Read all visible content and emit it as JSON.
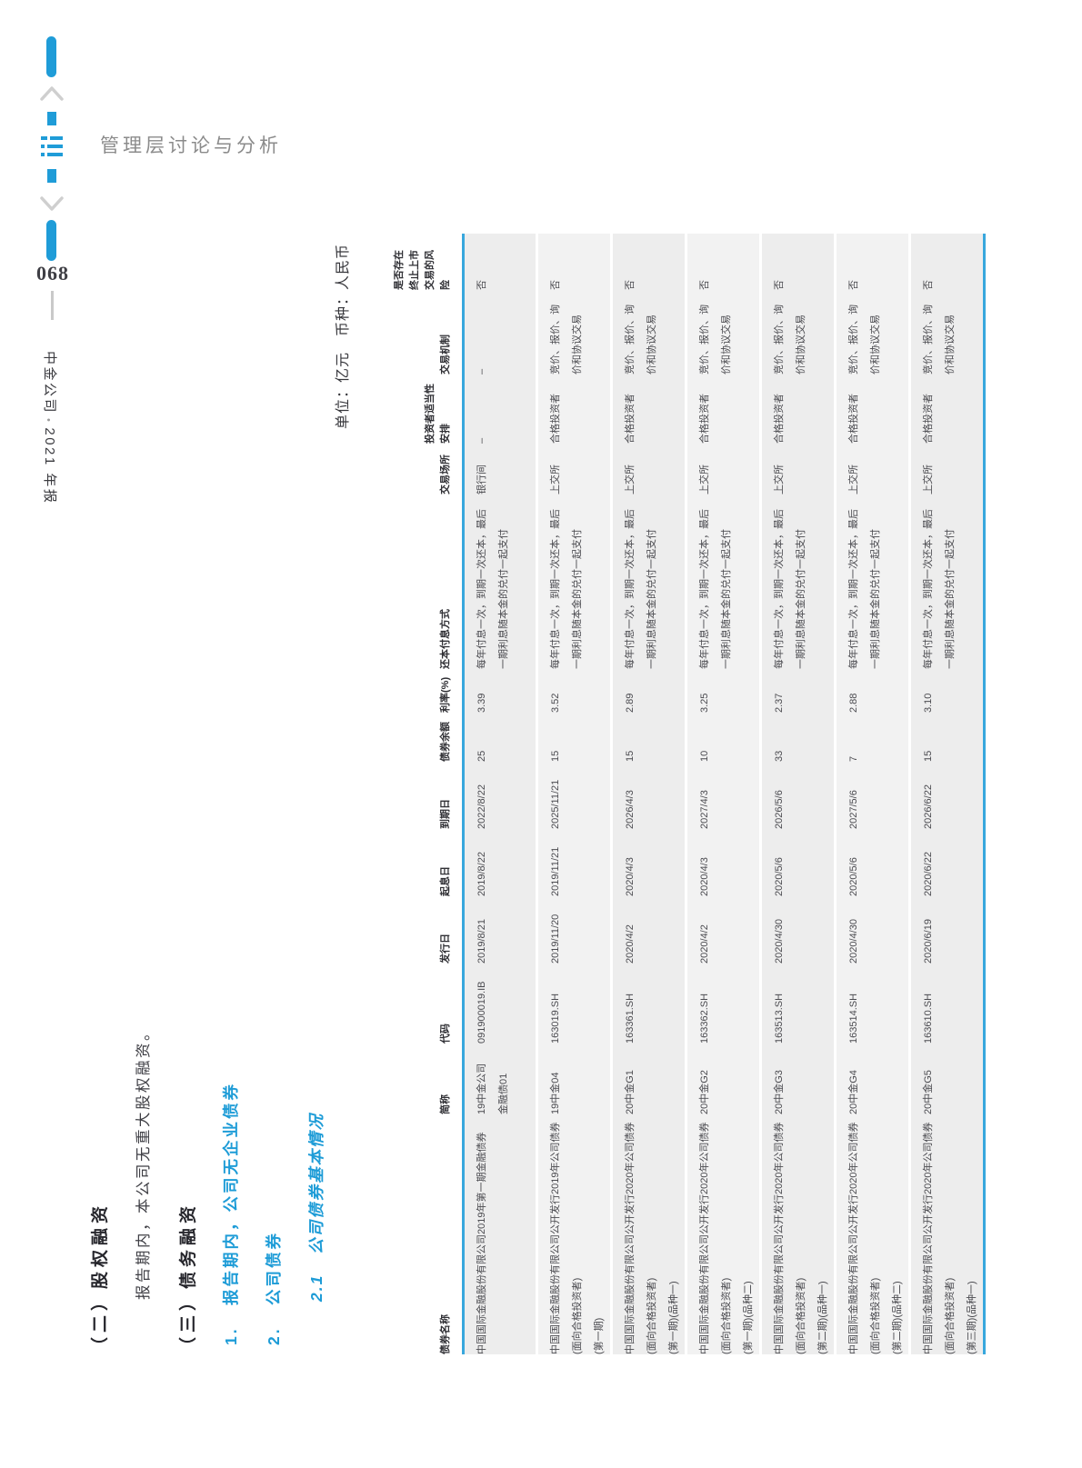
{
  "page": {
    "number": "068",
    "spine_company": "中金公司",
    "spine_sep": "•",
    "spine_year": "2021 年报",
    "header_title": "管理层讨论与分析"
  },
  "sections": {
    "s2_title": "（二）股权融资",
    "s2_body": "报告期内，本公司无重大股权融资。",
    "s3_title": "（三）债务融资",
    "item1_num": "1.",
    "item1_text": "报告期内，公司无企业债券",
    "item2_num": "2.",
    "item2_text": "公司债券",
    "sub_num": "2.1",
    "sub_text": "公司债券基本情况"
  },
  "table": {
    "unit_note": "单位：亿元　币种：人民币",
    "columns": [
      "债券名称",
      "简称",
      "代码",
      "发行日",
      "起息日",
      "到期日",
      "债券余额",
      "利率(%)",
      "还本付息方式",
      "交易场所",
      "投资者适当性安排",
      "交易机制",
      "是否存在终止上市交易的风险"
    ],
    "rows": [
      {
        "name_lines": [
          "中国国际金融股份有限公司2019年第一期金融债券",
          ""
        ],
        "abbr_lines": [
          "19中金公司",
          "金融债01"
        ],
        "code": "091900019.IB",
        "issue_date": "2019/8/21",
        "value_date": "2019/8/22",
        "maturity_date": "2022/8/22",
        "balance": "25",
        "rate": "3.39",
        "repayment": "每年付息一次，到期一次还本，最后一期利息随本金的兑付一起支付",
        "market": "银行间",
        "investor": "–",
        "mechanism": "–",
        "risk": "否"
      },
      {
        "name_lines": [
          "中国国际金融股份有限公司公开发行2019年公司债券(面向合格投资者)",
          "(第一期)"
        ],
        "abbr_lines": [
          "19中金04",
          ""
        ],
        "code": "163019.SH",
        "issue_date": "2019/11/20",
        "value_date": "2019/11/21",
        "maturity_date": "2025/11/21",
        "balance": "15",
        "rate": "3.52",
        "repayment": "每年付息一次，到期一次还本，最后一期利息随本金的兑付一起支付",
        "market": "上交所",
        "investor": "合格投资者",
        "mechanism": "竞价、报价、询价和协议交易",
        "risk": "否"
      },
      {
        "name_lines": [
          "中国国际金融股份有限公司公开发行2020年公司债券(面向合格投资者)",
          "(第一期)(品种一)"
        ],
        "abbr_lines": [
          "20中金G1",
          ""
        ],
        "code": "163361.SH",
        "issue_date": "2020/4/2",
        "value_date": "2020/4/3",
        "maturity_date": "2026/4/3",
        "balance": "15",
        "rate": "2.89",
        "repayment": "每年付息一次，到期一次还本，最后一期利息随本金的兑付一起支付",
        "market": "上交所",
        "investor": "合格投资者",
        "mechanism": "竞价、报价、询价和协议交易",
        "risk": "否"
      },
      {
        "name_lines": [
          "中国国际金融股份有限公司公开发行2020年公司债券(面向合格投资者)",
          "(第一期)(品种二)"
        ],
        "abbr_lines": [
          "20中金G2",
          ""
        ],
        "code": "163362.SH",
        "issue_date": "2020/4/2",
        "value_date": "2020/4/3",
        "maturity_date": "2027/4/3",
        "balance": "10",
        "rate": "3.25",
        "repayment": "每年付息一次，到期一次还本，最后一期利息随本金的兑付一起支付",
        "market": "上交所",
        "investor": "合格投资者",
        "mechanism": "竞价、报价、询价和协议交易",
        "risk": "否"
      },
      {
        "name_lines": [
          "中国国际金融股份有限公司公开发行2020年公司债券(面向合格投资者)",
          "(第二期)(品种一)"
        ],
        "abbr_lines": [
          "20中金G3",
          ""
        ],
        "code": "163513.SH",
        "issue_date": "2020/4/30",
        "value_date": "2020/5/6",
        "maturity_date": "2026/5/6",
        "balance": "33",
        "rate": "2.37",
        "repayment": "每年付息一次，到期一次还本，最后一期利息随本金的兑付一起支付",
        "market": "上交所",
        "investor": "合格投资者",
        "mechanism": "竞价、报价、询价和协议交易",
        "risk": "否"
      },
      {
        "name_lines": [
          "中国国际金融股份有限公司公开发行2020年公司债券(面向合格投资者)",
          "(第二期)(品种二)"
        ],
        "abbr_lines": [
          "20中金G4",
          ""
        ],
        "code": "163514.SH",
        "issue_date": "2020/4/30",
        "value_date": "2020/5/6",
        "maturity_date": "2027/5/6",
        "balance": "7",
        "rate": "2.88",
        "repayment": "每年付息一次，到期一次还本，最后一期利息随本金的兑付一起支付",
        "market": "上交所",
        "investor": "合格投资者",
        "mechanism": "竞价、报价、询价和协议交易",
        "risk": "否"
      },
      {
        "name_lines": [
          "中国国际金融股份有限公司公开发行2020年公司债券(面向合格投资者)",
          "(第三期)(品种一)"
        ],
        "abbr_lines": [
          "20中金G5",
          ""
        ],
        "code": "163610.SH",
        "issue_date": "2020/6/19",
        "value_date": "2020/6/22",
        "maturity_date": "2026/6/22",
        "balance": "15",
        "rate": "3.10",
        "repayment": "每年付息一次，到期一次还本，最后一期利息随本金的兑付一起支付",
        "market": "上交所",
        "investor": "合格投资者",
        "mechanism": "竞价、报价、询价和协议交易",
        "risk": "否"
      }
    ]
  },
  "colors": {
    "accent_blue": "#1F9CD8",
    "table_line_blue": "#38A7DD",
    "row_shade": "#EDEDED",
    "header_gray_text": "#8B8B8B",
    "chevron_gray": "#CFCFCF"
  }
}
